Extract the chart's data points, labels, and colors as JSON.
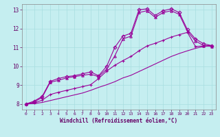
{
  "xlabel": "Windchill (Refroidissement éolien,°C)",
  "xlim": [
    -0.5,
    23.5
  ],
  "ylim": [
    7.7,
    13.3
  ],
  "xticks": [
    0,
    1,
    2,
    3,
    4,
    5,
    6,
    7,
    8,
    9,
    10,
    11,
    12,
    13,
    14,
    15,
    16,
    17,
    18,
    19,
    20,
    21,
    22,
    23
  ],
  "yticks": [
    8,
    9,
    10,
    11,
    12,
    13
  ],
  "background_color": "#c5eef0",
  "line_color": "#990099",
  "grid_color": "#a8dde0",
  "lines": [
    {
      "x": [
        0,
        1,
        2,
        3,
        4,
        5,
        6,
        7,
        8,
        9,
        10,
        11,
        12,
        13,
        14,
        15,
        16,
        17,
        18,
        19,
        20,
        21,
        22,
        23
      ],
      "y": [
        8.0,
        8.15,
        8.4,
        9.2,
        9.35,
        9.45,
        9.5,
        9.6,
        9.7,
        9.5,
        10.0,
        11.0,
        11.6,
        11.75,
        13.0,
        13.05,
        12.7,
        12.95,
        13.05,
        12.85,
        11.95,
        11.45,
        11.2,
        11.1
      ],
      "marker": "D",
      "ms": 2.5
    },
    {
      "x": [
        0,
        1,
        2,
        3,
        4,
        5,
        6,
        7,
        8,
        9,
        10,
        11,
        12,
        13,
        14,
        15,
        16,
        17,
        18,
        19,
        20,
        21,
        22,
        23
      ],
      "y": [
        8.0,
        8.1,
        8.35,
        9.15,
        9.25,
        9.38,
        9.45,
        9.52,
        9.58,
        9.45,
        9.85,
        10.55,
        11.45,
        11.6,
        12.85,
        12.95,
        12.6,
        12.85,
        12.95,
        12.75,
        11.85,
        11.35,
        11.1,
        11.05
      ],
      "marker": "^",
      "ms": 2.5
    },
    {
      "x": [
        0,
        1,
        2,
        3,
        4,
        5,
        6,
        7,
        8,
        9,
        10,
        11,
        12,
        13,
        14,
        15,
        16,
        17,
        18,
        19,
        20,
        21,
        22,
        23
      ],
      "y": [
        8.0,
        8.05,
        8.2,
        8.5,
        8.62,
        8.72,
        8.82,
        8.92,
        9.02,
        9.35,
        9.75,
        10.05,
        10.3,
        10.52,
        10.82,
        11.08,
        11.22,
        11.38,
        11.55,
        11.68,
        11.8,
        11.05,
        11.08,
        11.1
      ],
      "marker": "+",
      "ms": 3.5
    },
    {
      "x": [
        0,
        1,
        2,
        3,
        4,
        5,
        6,
        7,
        8,
        9,
        10,
        11,
        12,
        13,
        14,
        15,
        16,
        17,
        18,
        19,
        20,
        21,
        22,
        23
      ],
      "y": [
        8.0,
        8.02,
        8.08,
        8.18,
        8.28,
        8.38,
        8.48,
        8.58,
        8.72,
        8.88,
        9.02,
        9.18,
        9.38,
        9.52,
        9.72,
        9.92,
        10.12,
        10.32,
        10.52,
        10.68,
        10.82,
        10.95,
        11.05,
        11.1
      ],
      "marker": null,
      "ms": 0
    }
  ]
}
